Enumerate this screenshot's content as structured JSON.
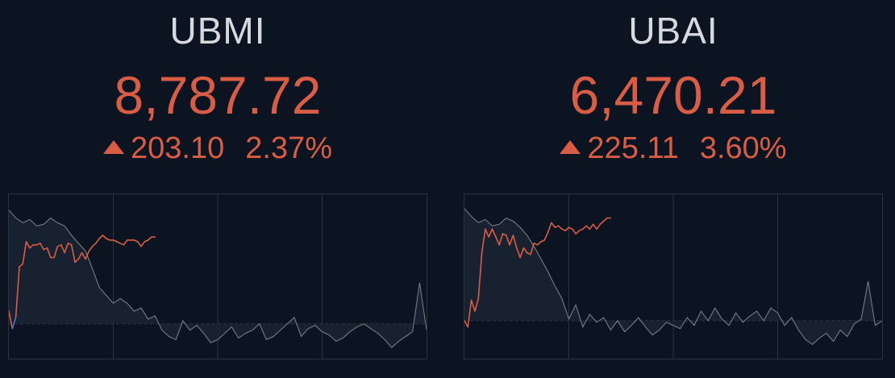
{
  "colors": {
    "background": "#0c1421",
    "up": "#d95d45",
    "dip": "#3a7bd5",
    "grid": "#2a3342",
    "reference": "#38414f",
    "volume_line": "#737b86",
    "volume_fill": "#1a2231"
  },
  "tickers": [
    {
      "name": "UBMI",
      "price": "8,787.72",
      "change": "203.10",
      "change_pct": "2.37%",
      "direction": "up",
      "direction_icon": "triangle-up-icon",
      "chart_data": {
        "type": "line",
        "x_label": "",
        "y_label": "",
        "grid": true,
        "x_range": [
          0,
          120
        ],
        "y_range": [
          0,
          100
        ],
        "series": [
          {
            "role": "price",
            "x": [
              0,
              1,
              2,
              3,
              4,
              5,
              6,
              7,
              8,
              9,
              10,
              11,
              12,
              13,
              14,
              15,
              16,
              17,
              18,
              19,
              20,
              21,
              22,
              23,
              24,
              25,
              26,
              27,
              28,
              29,
              30,
              31,
              32,
              33,
              34,
              35,
              36,
              37,
              38,
              39,
              40,
              41,
              42
            ],
            "y": [
              28,
              17,
              24,
              56,
              58,
              72,
              68,
              70,
              70,
              71,
              67,
              68,
              62,
              62,
              69,
              70,
              65,
              71,
              70,
              59,
              61,
              65,
              61,
              66,
              69,
              71,
              74,
              76,
              74,
              73,
              73,
              72,
              71,
              70,
              73,
              73,
              73,
              72,
              69,
              72,
              73,
              75,
              75
            ],
            "reference": 20
          },
          {
            "role": "volume",
            "x": [
              0,
              2,
              4,
              6,
              8,
              10,
              12,
              14,
              16,
              18,
              20,
              22,
              24,
              26,
              28,
              30,
              32,
              34,
              36,
              38,
              40,
              42,
              44,
              46,
              48,
              50,
              52,
              54,
              56,
              58,
              60,
              62,
              64,
              66,
              68,
              70,
              72,
              74,
              76,
              78,
              80,
              82,
              84,
              86,
              88,
              90,
              92,
              94,
              96,
              98,
              100,
              102,
              104,
              106,
              108,
              110,
              112,
              114,
              116,
              118,
              120
            ],
            "y": [
              92,
              87,
              84,
              86,
              82,
              83,
              87,
              84,
              82,
              76,
              71,
              66,
              55,
              43,
              38,
              33,
              36,
              33,
              28,
              30,
              23,
              25,
              16,
              12,
              10,
              22,
              16,
              19,
              14,
              8,
              10,
              14,
              18,
              11,
              14,
              16,
              20,
              10,
              12,
              16,
              20,
              24,
              12,
              17,
              19,
              15,
              13,
              9,
              11,
              15,
              18,
              20,
              17,
              14,
              10,
              5,
              9,
              12,
              15,
              46,
              16
            ],
            "reference": 20
          }
        ]
      }
    },
    {
      "name": "UBAI",
      "price": "6,470.21",
      "change": "225.11",
      "change_pct": "3.60%",
      "direction": "up",
      "direction_icon": "triangle-up-icon",
      "chart_data": {
        "type": "line",
        "x_label": "",
        "y_label": "",
        "grid": true,
        "x_range": [
          0,
          120
        ],
        "y_range": [
          0,
          100
        ],
        "series": [
          {
            "role": "price",
            "x": [
              0,
              1,
              2,
              3,
              4,
              5,
              6,
              7,
              8,
              9,
              10,
              11,
              12,
              13,
              14,
              15,
              16,
              17,
              18,
              19,
              20,
              21,
              22,
              23,
              24,
              25,
              26,
              27,
              28,
              29,
              30,
              31,
              32,
              33,
              34,
              35,
              36,
              37,
              38,
              39,
              40,
              41,
              42
            ],
            "y": [
              22,
              18,
              35,
              28,
              36,
              65,
              80,
              75,
              80,
              75,
              70,
              77,
              76,
              70,
              76,
              68,
              62,
              68,
              65,
              64,
              71,
              70,
              72,
              73,
              78,
              84,
              81,
              82,
              80,
              79,
              81,
              80,
              77,
              79,
              80,
              82,
              80,
              83,
              80,
              83,
              85,
              87,
              87
            ],
            "reference": 22
          },
          {
            "role": "volume",
            "x": [
              0,
              2,
              4,
              6,
              8,
              10,
              12,
              14,
              16,
              18,
              20,
              22,
              24,
              26,
              28,
              30,
              32,
              34,
              36,
              38,
              40,
              42,
              44,
              46,
              48,
              50,
              52,
              54,
              56,
              58,
              60,
              62,
              64,
              66,
              68,
              70,
              72,
              74,
              76,
              78,
              80,
              82,
              84,
              86,
              88,
              90,
              92,
              94,
              96,
              98,
              100,
              102,
              104,
              106,
              108,
              110,
              112,
              114,
              116,
              118,
              120
            ],
            "y": [
              93,
              88,
              84,
              86,
              82,
              83,
              87,
              85,
              81,
              76,
              69,
              61,
              53,
              44,
              36,
              23,
              32,
              18,
              26,
              21,
              24,
              16,
              22,
              15,
              19,
              24,
              18,
              13,
              16,
              21,
              19,
              17,
              24,
              19,
              28,
              22,
              30,
              23,
              19,
              27,
              21,
              25,
              28,
              22,
              30,
              27,
              19,
              24,
              16,
              10,
              7,
              11,
              14,
              9,
              16,
              12,
              20,
              23,
              47,
              19,
              22
            ],
            "reference": 22
          }
        ]
      }
    }
  ]
}
